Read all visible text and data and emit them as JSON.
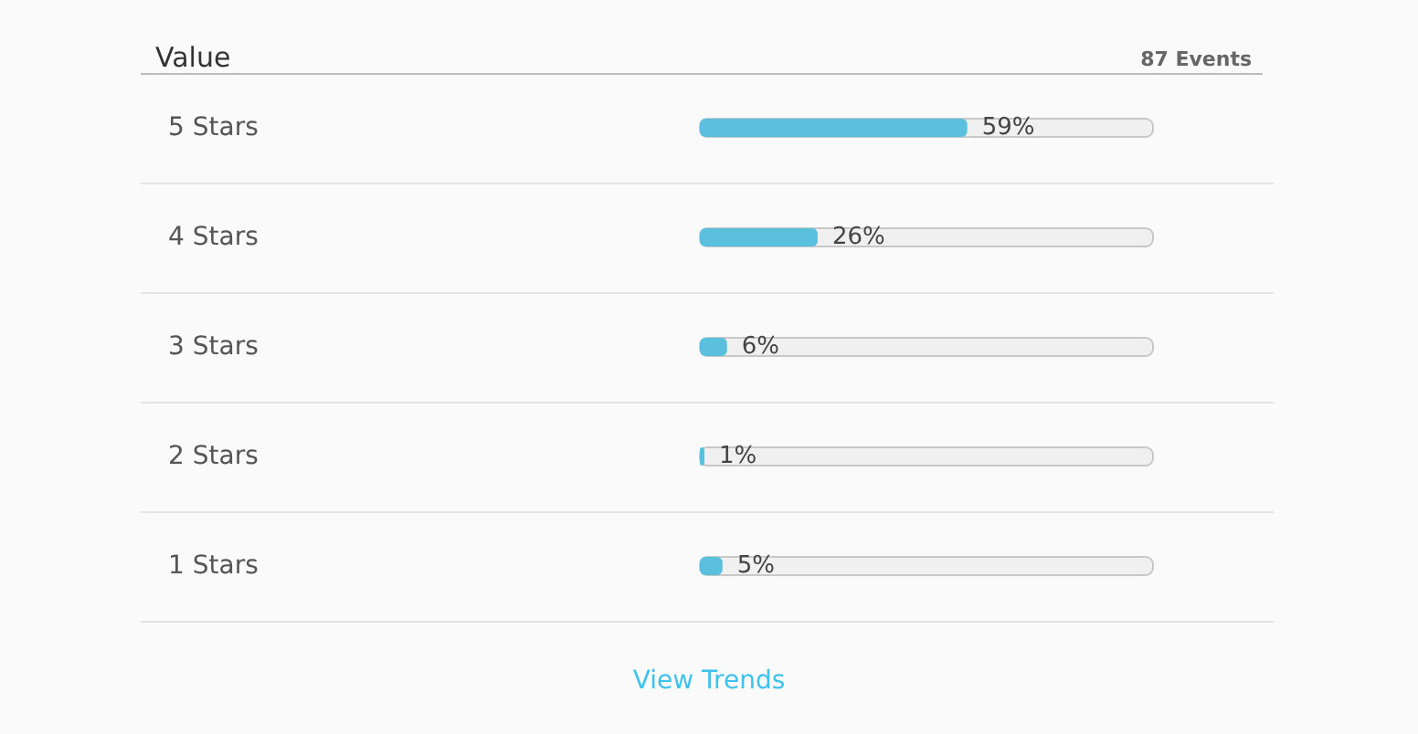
{
  "chart_data": {
    "type": "bar",
    "orientation": "horizontal",
    "title": "Value",
    "categories": [
      "5 Stars",
      "4 Stars",
      "3 Stars",
      "2 Stars",
      "1 Stars"
    ],
    "values": [
      59,
      26,
      6,
      1,
      5
    ],
    "color": "#5bc0de",
    "value_labels": [
      "59%",
      "26%",
      "6%",
      "1%",
      "5%"
    ],
    "xlim": [
      0,
      100
    ],
    "tick_labels": "y",
    "annotations": [
      "87 Events",
      "View Trends"
    ]
  }
}
